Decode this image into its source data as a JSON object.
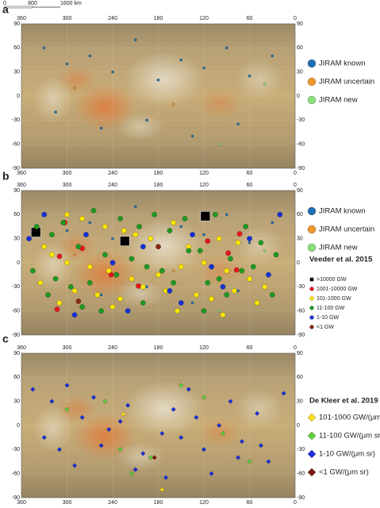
{
  "chart_data": [
    {
      "type": "scatter",
      "panel": "a",
      "scale_bar_labels": [
        "0",
        "800",
        "1600 km"
      ],
      "xlim": [
        360,
        0
      ],
      "ylim": [
        -90,
        90
      ],
      "xticks": [
        360,
        300,
        240,
        180,
        120,
        60,
        0
      ],
      "yticks": [
        90,
        60,
        30,
        0,
        -30,
        -60,
        -90
      ],
      "xtick_sides": [
        "top",
        "bottom"
      ],
      "legend_groups": [
        {
          "series": [
            {
              "name": "JIRAM known",
              "color": "#1f6fb5",
              "marker": "circle",
              "x": [
                330,
                300,
                270,
                240,
                210,
                180,
                150,
                120,
                90,
                60,
                30,
                315,
                255,
                195,
                135,
                75
              ],
              "y": [
                60,
                40,
                50,
                30,
                70,
                20,
                45,
                35,
                60,
                25,
                50,
                -20,
                -40,
                -30,
                -50,
                -35
              ]
            },
            {
              "name": "JIRAM uncertain",
              "color": "#f0962a",
              "marker": "circle",
              "x": [
                290,
                160
              ],
              "y": [
                10,
                -10
              ]
            },
            {
              "name": "JIRAM new",
              "color": "#8be07a",
              "marker": "circle",
              "x": [
                100,
                40
              ],
              "y": [
                -60,
                15
              ]
            }
          ]
        }
      ]
    },
    {
      "type": "scatter",
      "panel": "b",
      "xlim": [
        360,
        0
      ],
      "ylim": [
        -90,
        90
      ],
      "xticks": [
        360,
        300,
        240,
        180,
        120,
        60,
        0
      ],
      "yticks": [
        90,
        60,
        30,
        0,
        -30,
        -60,
        -90
      ],
      "xtick_sides": [
        "top"
      ],
      "legend_groups": [
        {
          "series": [
            {
              "name": "JIRAM known",
              "color": "#1f6fb5",
              "marker": "circle",
              "x": [
                330,
                300,
                270,
                240,
                210,
                180,
                150,
                120,
                90,
                60,
                30,
                315,
                255,
                195,
                135,
                75
              ],
              "y": [
                60,
                40,
                50,
                30,
                70,
                20,
                45,
                35,
                60,
                25,
                50,
                -20,
                -40,
                -30,
                -50,
                -35
              ]
            },
            {
              "name": "JIRAM uncertain",
              "color": "#f0962a",
              "marker": "circle",
              "x": [
                290,
                160
              ],
              "y": [
                10,
                -10
              ]
            },
            {
              "name": "JIRAM new",
              "color": "#8be07a",
              "marker": "circle",
              "x": [
                100,
                40
              ],
              "y": [
                -60,
                15
              ]
            }
          ]
        },
        {
          "title": "Veeder et al. 2015",
          "series": [
            {
              "name": ">10000 GW",
              "color": "#000000",
              "marker": "square",
              "x": [
                341,
                224,
                118
              ],
              "y": [
                38,
                27,
                58
              ]
            },
            {
              "name": "1001-10000 GW",
              "color": "#e8131b",
              "marker": "circle",
              "x": [
                303,
                280,
                310,
                242,
                235,
                88,
                73,
                77,
                206,
                313,
                115
              ],
              "y": [
                50,
                18,
                8,
                -15,
                -15,
                12,
                36,
                -9,
                -29,
                -58,
                27
              ]
            },
            {
              "name": "101-1000 GW",
              "color": "#ffe600",
              "marker": "circle",
              "x": [
                300,
                280,
                250,
                225,
                210,
                190,
                160,
                140,
                100,
                75,
                330,
                320,
                300,
                270,
                245,
                215,
                180,
                150,
                120,
                90,
                60,
                40,
                335,
                290,
                260,
                230,
                200,
                170,
                130,
                110,
                80,
                50,
                310,
                240,
                155,
                95
              ],
              "y": [
                60,
                55,
                45,
                40,
                35,
                30,
                50,
                20,
                30,
                25,
                20,
                10,
                0,
                -5,
                -10,
                -20,
                -15,
                -5,
                0,
                -10,
                -20,
                -30,
                -25,
                -35,
                -40,
                -45,
                -30,
                -35,
                -40,
                -45,
                -35,
                -50,
                -50,
                -55,
                -60,
                -65
              ]
            },
            {
              "name": "11-100 GW",
              "color": "#1e9a1e",
              "marker": "circle",
              "x": [
                340,
                320,
                305,
                285,
                265,
                250,
                230,
                205,
                185,
                165,
                145,
                125,
                105,
                85,
                65,
                45,
                25,
                345,
                315,
                295,
                270,
                235,
                215,
                195,
                175,
                140,
                115,
                90,
                70,
                30,
                325,
                280,
                255,
                200,
                160,
                120,
                100,
                55
              ],
              "y": [
                45,
                35,
                50,
                20,
                65,
                10,
                55,
                45,
                60,
                40,
                55,
                15,
                60,
                5,
                45,
                25,
                10,
                -10,
                -20,
                -30,
                -25,
                -15,
                5,
                -5,
                -10,
                15,
                -25,
                -40,
                -10,
                -40,
                -40,
                -55,
                -60,
                -50,
                -25,
                -60,
                -20,
                -5
              ]
            },
            {
              "name": "1-10 GW",
              "color": "#1530d6",
              "marker": "circle",
              "x": [
                350,
                330,
                275,
                240,
                200,
                165,
                135,
                95,
                60,
                35,
                290,
                220,
                150,
                110,
                20
              ],
              "y": [
                30,
                60,
                35,
                0,
                20,
                -35,
                35,
                -30,
                30,
                -15,
                -65,
                -60,
                -50,
                -5,
                60
              ]
            },
            {
              "name": "<1 GW",
              "color": "#8b2a12",
              "marker": "circle",
              "x": [
                285,
                180
              ],
              "y": [
                -48,
                20
              ]
            }
          ]
        }
      ]
    },
    {
      "type": "scatter",
      "panel": "c",
      "xlim": [
        360,
        0
      ],
      "ylim": [
        -90,
        90
      ],
      "xticks": [
        360,
        300,
        240,
        180,
        120,
        60,
        0
      ],
      "yticks": [
        90,
        60,
        30,
        0,
        -30,
        -60,
        -90
      ],
      "xtick_sides": [
        "top",
        "bottom"
      ],
      "legend_groups": [
        {
          "title": "De Kleer et al. 2019",
          "series": [
            {
              "name": "101-1000 GW/(μm sr)",
              "color": "#ffe11a",
              "marker": "diamond",
              "x": [
                226,
                175
              ],
              "y": [
                14,
                -80
              ]
            },
            {
              "name": "11-100 GW/(μm sr)",
              "color": "#5fd13a",
              "marker": "diamond",
              "x": [
                300,
                250,
                215,
                190,
                150,
                95,
                60,
                230,
                120
              ],
              "y": [
                20,
                30,
                -60,
                -40,
                50,
                -10,
                -45,
                -30,
                35
              ]
            },
            {
              "name": "1-10 GW/(μm sr)",
              "color": "#1a2fe0",
              "marker": "diamond",
              "x": [
                345,
                320,
                300,
                280,
                265,
                245,
                220,
                200,
                175,
                160,
                140,
                120,
                100,
                85,
                70,
                50,
                35,
                15,
                330,
                290,
                255,
                210,
                170,
                130,
                110,
                75,
                45,
                310,
                230,
                150
              ],
              "y": [
                45,
                30,
                50,
                10,
                35,
                -5,
                25,
                -35,
                -10,
                20,
                45,
                -30,
                0,
                30,
                -20,
                15,
                -45,
                40,
                -15,
                -50,
                -25,
                -55,
                -65,
                10,
                -60,
                -40,
                -25,
                -30,
                5,
                -15
              ]
            },
            {
              "name": "<1 GW/(μm sr)",
              "color": "#7a1a0c",
              "marker": "diamond",
              "x": [
                185
              ],
              "y": [
                -40
              ]
            }
          ]
        }
      ]
    }
  ]
}
